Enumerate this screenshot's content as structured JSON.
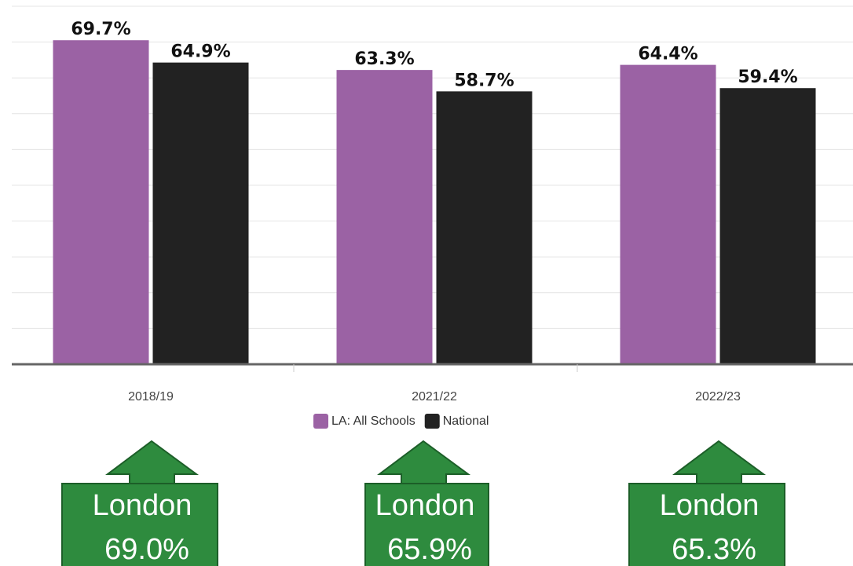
{
  "chart_data": {
    "type": "bar",
    "categories": [
      "2018/19",
      "2021/22",
      "2022/23"
    ],
    "series": [
      {
        "name": "LA: All Schools",
        "color": "#9b62a4",
        "values": [
          69.7,
          63.3,
          64.4
        ],
        "value_labels": [
          "69.7%",
          "63.3%",
          "64.4%"
        ]
      },
      {
        "name": "National",
        "color": "#222222",
        "values": [
          64.9,
          58.7,
          59.4
        ],
        "value_labels": [
          "64.9%",
          "58.7%",
          "59.4%"
        ]
      }
    ],
    "ylim": [
      0,
      77
    ],
    "yticks": [
      0,
      7.7,
      15.4,
      23.1,
      30.8,
      38.5,
      46.2,
      53.9,
      61.6,
      69.3,
      77
    ],
    "grid": true,
    "legend": "bottom",
    "annotations": [
      {
        "lines": [
          "London",
          "69.0%"
        ]
      },
      {
        "lines": [
          "London",
          "65.9%"
        ]
      },
      {
        "lines": [
          "London",
          "65.3%"
        ]
      }
    ]
  }
}
